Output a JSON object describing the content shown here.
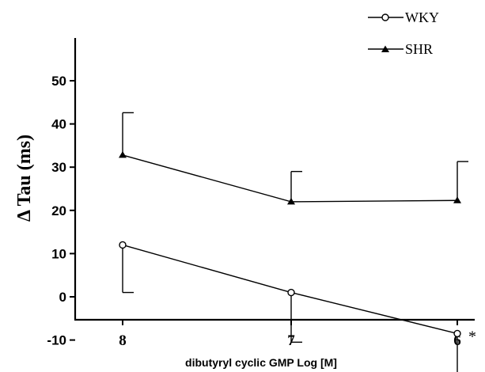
{
  "chart_data": {
    "type": "line",
    "title": "",
    "xlabel": "dibutyryl cyclic GMP Log [M]",
    "ylabel": "Δ Tau (ms)",
    "categories": [
      "8",
      "7",
      "6"
    ],
    "yticks": [
      "50",
      "40",
      "30",
      "20",
      "10",
      "0",
      "-10"
    ],
    "ylim": [
      -15,
      50
    ],
    "grid": false,
    "legend_position": "top-right",
    "series": [
      {
        "name": "WKY",
        "marker": "open-circle",
        "values": [
          12,
          1,
          -8.5
        ],
        "error_bars": [
          -11,
          -11.5,
          -11
        ]
      },
      {
        "name": "SHR",
        "marker": "filled-triangle",
        "values": [
          32.8,
          22,
          22.3
        ],
        "error_bars": [
          9.8,
          7,
          9
        ]
      }
    ],
    "annotations": [
      {
        "text": "*",
        "near_series": "WKY",
        "near_category": "6"
      }
    ]
  }
}
